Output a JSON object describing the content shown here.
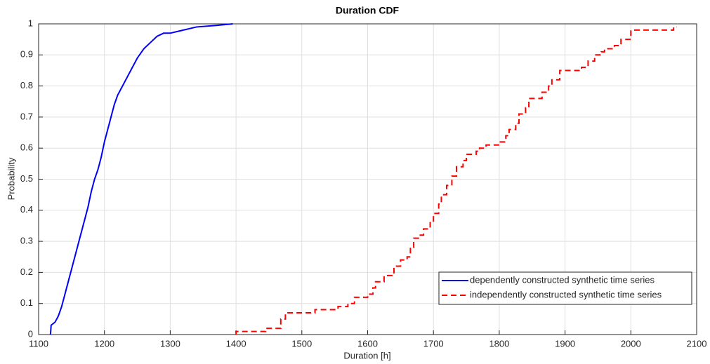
{
  "chart_data": {
    "type": "line",
    "title": "Duration CDF",
    "x_label": "Duration [h]",
    "y_label": "Probability",
    "xlim": [
      1100,
      2100
    ],
    "xticks": [
      1100,
      1200,
      1300,
      1400,
      1500,
      1600,
      1700,
      1800,
      1900,
      2000,
      2100
    ],
    "ylim": [
      0,
      1
    ],
    "yticks": [
      0,
      0.1,
      0.2,
      0.3,
      0.4,
      0.5,
      0.6,
      0.7,
      0.8,
      0.9,
      1
    ],
    "grid": true,
    "legend": "lower right",
    "series": [
      {
        "name": "dependently constructed synthetic time series",
        "color": "#0000ff",
        "dash": "solid",
        "drawstyle": "default",
        "x": [
          1118,
          1119,
          1125,
          1130,
          1135,
          1140,
          1145,
          1150,
          1155,
          1160,
          1165,
          1170,
          1175,
          1180,
          1185,
          1190,
          1195,
          1200,
          1205,
          1210,
          1215,
          1220,
          1230,
          1240,
          1250,
          1260,
          1270,
          1280,
          1290,
          1300,
          1320,
          1340,
          1370,
          1395
        ],
        "values": [
          0,
          0.03,
          0.04,
          0.06,
          0.09,
          0.13,
          0.17,
          0.21,
          0.25,
          0.29,
          0.33,
          0.37,
          0.41,
          0.46,
          0.5,
          0.53,
          0.57,
          0.62,
          0.66,
          0.7,
          0.74,
          0.77,
          0.81,
          0.85,
          0.89,
          0.92,
          0.94,
          0.96,
          0.97,
          0.97,
          0.98,
          0.99,
          0.995,
          1
        ]
      },
      {
        "name": "independently constructed synthetic time series",
        "color": "#ff0000",
        "dash": "dashed",
        "drawstyle": "steps",
        "x": [
          1400,
          1400,
          1445,
          1468,
          1475,
          1520,
          1555,
          1570,
          1580,
          1600,
          1608,
          1612,
          1625,
          1640,
          1650,
          1660,
          1665,
          1670,
          1680,
          1685,
          1695,
          1700,
          1708,
          1712,
          1720,
          1728,
          1735,
          1745,
          1750,
          1765,
          1770,
          1780,
          1800,
          1810,
          1815,
          1825,
          1830,
          1840,
          1845,
          1865,
          1875,
          1880,
          1892,
          1925,
          1935,
          1945,
          1955,
          1960,
          1975,
          1985,
          2000,
          2065,
          2070
        ],
        "values": [
          0,
          0.01,
          0.02,
          0.05,
          0.07,
          0.08,
          0.09,
          0.1,
          0.12,
          0.13,
          0.15,
          0.17,
          0.19,
          0.22,
          0.24,
          0.25,
          0.28,
          0.31,
          0.32,
          0.34,
          0.36,
          0.39,
          0.42,
          0.45,
          0.48,
          0.51,
          0.54,
          0.56,
          0.58,
          0.59,
          0.6,
          0.61,
          0.62,
          0.64,
          0.66,
          0.68,
          0.71,
          0.73,
          0.76,
          0.78,
          0.8,
          0.82,
          0.85,
          0.86,
          0.88,
          0.9,
          0.91,
          0.92,
          0.93,
          0.95,
          0.98,
          0.99,
          0.99
        ]
      }
    ]
  }
}
